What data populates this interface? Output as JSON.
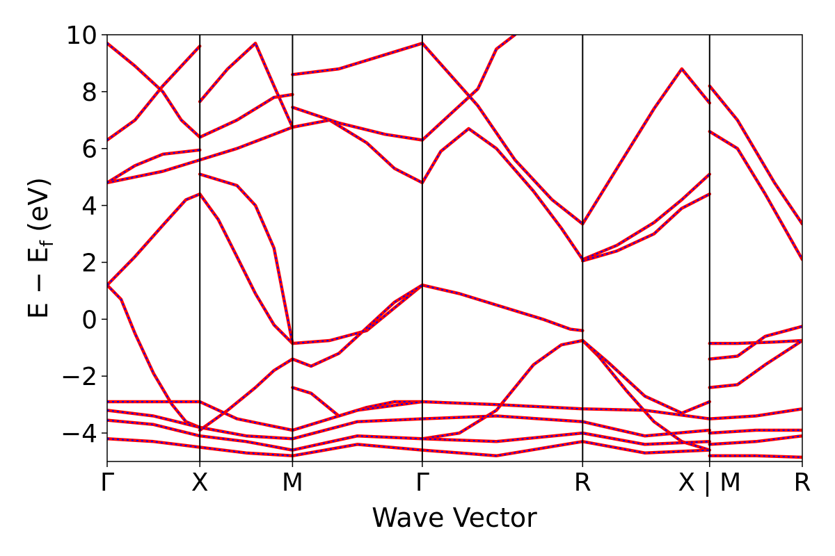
{
  "chart_data": {
    "type": "line",
    "title": "",
    "xlabel": "Wave Vector",
    "ylabel_parts": {
      "main": "E − E",
      "sub": "f",
      "unit": " (eV)"
    },
    "ylim": [
      -5,
      10
    ],
    "yticks": [
      -4,
      -2,
      0,
      2,
      4,
      6,
      8,
      10
    ],
    "ytick_labels": [
      "−4",
      "−2",
      "0",
      "2",
      "4",
      "6",
      "8",
      "10"
    ],
    "xlim": [
      0,
      7.5
    ],
    "kpoints": [
      {
        "label": "Γ",
        "x": 0
      },
      {
        "label": "X",
        "x": 1.0
      },
      {
        "label": "M",
        "x": 2.0
      },
      {
        "label": "Γ",
        "x": 3.4
      },
      {
        "label": "R",
        "x": 5.13
      },
      {
        "label": "X | M",
        "x": 6.5
      },
      {
        "label": "R",
        "x": 7.5
      }
    ],
    "grid": false,
    "legend": "none",
    "colors": {
      "bands_primary": "#ff0000",
      "bands_overlay": "#0000ff",
      "kpoint_lines": "#000000"
    },
    "series": [
      {
        "name": "",
        "segments": [
          [
            [
              0,
              1.2
            ],
            [
              0.15,
              0.7
            ],
            [
              0.3,
              -0.5
            ],
            [
              0.5,
              -1.9
            ],
            [
              0.7,
              -3.0
            ],
            [
              0.85,
              -3.6
            ],
            [
              1.0,
              -3.8
            ]
          ],
          [
            [
              1.0,
              4.4
            ],
            [
              1.2,
              3.5
            ],
            [
              1.4,
              2.2
            ],
            [
              1.6,
              0.9
            ],
            [
              1.8,
              -0.2
            ],
            [
              2.0,
              -0.85
            ]
          ],
          [
            [
              2.0,
              -0.85
            ],
            [
              2.4,
              -0.75
            ],
            [
              2.8,
              -0.4
            ],
            [
              3.1,
              0.4
            ],
            [
              3.4,
              1.2
            ]
          ],
          [
            [
              3.4,
              1.2
            ],
            [
              3.8,
              0.9
            ],
            [
              4.3,
              0.4
            ],
            [
              4.7,
              0.0
            ],
            [
              5.0,
              -0.35
            ],
            [
              5.13,
              -0.4
            ]
          ],
          [
            [
              5.13,
              -0.75
            ],
            [
              5.3,
              -1.3
            ],
            [
              5.6,
              -2.5
            ],
            [
              5.9,
              -3.6
            ],
            [
              6.2,
              -4.3
            ],
            [
              6.5,
              -4.6
            ]
          ],
          [
            [
              6.5,
              -0.85
            ],
            [
              6.8,
              -0.85
            ],
            [
              7.2,
              -0.8
            ],
            [
              7.5,
              -0.75
            ]
          ],
          [
            [
              6.5,
              -1.4
            ],
            [
              6.8,
              -1.3
            ],
            [
              7.1,
              -0.6
            ],
            [
              7.5,
              -0.25
            ]
          ]
        ]
      },
      {
        "name": "",
        "segments": [
          [
            [
              0,
              1.2
            ],
            [
              0.3,
              2.2
            ],
            [
              0.6,
              3.3
            ],
            [
              0.85,
              4.2
            ],
            [
              1.0,
              4.4
            ]
          ],
          [
            [
              1.0,
              -3.9
            ],
            [
              1.3,
              -3.2
            ],
            [
              1.6,
              -2.4
            ],
            [
              1.8,
              -1.8
            ],
            [
              2.0,
              -1.4
            ],
            [
              2.2,
              -1.65
            ],
            [
              2.5,
              -1.2
            ],
            [
              2.8,
              -0.3
            ],
            [
              3.1,
              0.6
            ],
            [
              3.4,
              1.2
            ]
          ],
          [
            [
              2.0,
              -2.4
            ],
            [
              2.2,
              -2.6
            ],
            [
              2.5,
              -3.4
            ],
            [
              2.8,
              -3.1
            ],
            [
              3.1,
              -2.9
            ],
            [
              3.4,
              -2.9
            ]
          ],
          [
            [
              3.4,
              -4.2
            ],
            [
              3.8,
              -4.0
            ],
            [
              4.2,
              -3.2
            ],
            [
              4.6,
              -1.6
            ],
            [
              4.9,
              -0.9
            ],
            [
              5.13,
              -0.75
            ]
          ],
          [
            [
              5.13,
              -0.75
            ],
            [
              5.4,
              -1.5
            ],
            [
              5.8,
              -2.7
            ],
            [
              6.2,
              -3.3
            ],
            [
              6.5,
              -2.9
            ]
          ],
          [
            [
              6.5,
              -2.4
            ],
            [
              6.8,
              -2.3
            ],
            [
              7.1,
              -1.6
            ],
            [
              7.5,
              -0.75
            ]
          ]
        ]
      },
      {
        "name": "",
        "segments": [
          [
            [
              0,
              4.8
            ],
            [
              0.3,
              5.0
            ],
            [
              0.6,
              5.2
            ],
            [
              1.0,
              5.6
            ]
          ],
          [
            [
              0,
              4.8
            ],
            [
              0.3,
              5.4
            ],
            [
              0.6,
              5.8
            ],
            [
              1.0,
              5.95
            ]
          ],
          [
            [
              1.0,
              5.6
            ],
            [
              1.4,
              6.0
            ],
            [
              1.8,
              6.5
            ],
            [
              2.0,
              6.75
            ]
          ],
          [
            [
              1.0,
              5.1
            ],
            [
              1.4,
              4.7
            ],
            [
              1.6,
              4.0
            ],
            [
              1.8,
              2.5
            ],
            [
              2.0,
              -0.85
            ]
          ],
          [
            [
              2.0,
              6.75
            ],
            [
              2.4,
              7.0
            ],
            [
              2.8,
              6.2
            ],
            [
              3.1,
              5.3
            ],
            [
              3.4,
              4.8
            ]
          ],
          [
            [
              3.4,
              4.8
            ],
            [
              3.6,
              5.9
            ],
            [
              3.9,
              6.7
            ],
            [
              4.2,
              6.0
            ],
            [
              4.6,
              4.5
            ],
            [
              4.9,
              3.2
            ],
            [
              5.13,
              2.1
            ]
          ],
          [
            [
              5.13,
              2.1
            ],
            [
              5.5,
              2.6
            ],
            [
              5.9,
              3.4
            ],
            [
              6.2,
              4.2
            ],
            [
              6.5,
              5.1
            ]
          ],
          [
            [
              5.13,
              2.05
            ],
            [
              5.5,
              2.4
            ],
            [
              5.9,
              3.0
            ],
            [
              6.2,
              3.9
            ],
            [
              6.5,
              4.4
            ]
          ],
          [
            [
              6.5,
              6.6
            ],
            [
              6.8,
              6.0
            ],
            [
              7.1,
              4.4
            ],
            [
              7.5,
              2.1
            ]
          ]
        ]
      },
      {
        "name": "",
        "segments": [
          [
            [
              0,
              6.3
            ],
            [
              0.3,
              7.0
            ],
            [
              0.6,
              8.2
            ],
            [
              0.8,
              8.9
            ],
            [
              1.0,
              9.6
            ]
          ],
          [
            [
              0,
              9.7
            ],
            [
              0.3,
              8.9
            ],
            [
              0.6,
              8.0
            ],
            [
              0.8,
              7.0
            ],
            [
              1.0,
              6.4
            ]
          ],
          [
            [
              1.0,
              6.4
            ],
            [
              1.4,
              7.0
            ],
            [
              1.8,
              7.8
            ],
            [
              2.0,
              7.9
            ]
          ],
          [
            [
              1.0,
              7.65
            ],
            [
              1.3,
              8.8
            ],
            [
              1.6,
              9.7
            ],
            [
              1.8,
              8.2
            ],
            [
              2.0,
              6.75
            ]
          ],
          [
            [
              2.0,
              7.45
            ],
            [
              2.5,
              6.9
            ],
            [
              3.0,
              6.5
            ],
            [
              3.4,
              6.3
            ]
          ],
          [
            [
              2.0,
              8.6
            ],
            [
              2.5,
              8.8
            ],
            [
              3.0,
              9.3
            ],
            [
              3.4,
              9.7
            ]
          ],
          [
            [
              3.4,
              9.7
            ],
            [
              3.7,
              8.6
            ],
            [
              4.0,
              7.5
            ],
            [
              4.4,
              5.6
            ],
            [
              4.8,
              4.2
            ],
            [
              5.13,
              3.35
            ]
          ],
          [
            [
              5.13,
              3.35
            ],
            [
              5.5,
              5.3
            ],
            [
              5.9,
              7.4
            ],
            [
              6.2,
              8.8
            ],
            [
              6.5,
              7.6
            ]
          ],
          [
            [
              3.4,
              6.3
            ],
            [
              3.7,
              7.2
            ],
            [
              4.0,
              8.1
            ],
            [
              4.2,
              9.5
            ],
            [
              4.4,
              10
            ]
          ],
          [
            [
              6.5,
              8.2
            ],
            [
              6.8,
              7.0
            ],
            [
              7.2,
              4.8
            ],
            [
              7.5,
              3.35
            ]
          ]
        ]
      },
      {
        "name": "",
        "segments": [
          [
            [
              0,
              -2.9
            ],
            [
              0.5,
              -2.9
            ],
            [
              1.0,
              -2.9
            ],
            [
              1.4,
              -3.5
            ],
            [
              2.0,
              -3.9
            ],
            [
              2.7,
              -3.2
            ],
            [
              3.4,
              -2.9
            ],
            [
              4.2,
              -3.0
            ],
            [
              5.13,
              -3.15
            ],
            [
              5.8,
              -3.2
            ],
            [
              6.5,
              -3.5
            ]
          ],
          [
            [
              0,
              -3.2
            ],
            [
              0.5,
              -3.4
            ],
            [
              1.0,
              -3.8
            ],
            [
              1.5,
              -4.1
            ],
            [
              2.0,
              -4.2
            ],
            [
              2.7,
              -3.6
            ],
            [
              3.4,
              -3.5
            ],
            [
              4.2,
              -3.4
            ],
            [
              5.13,
              -3.6
            ],
            [
              5.8,
              -4.1
            ],
            [
              6.5,
              -3.9
            ]
          ],
          [
            [
              0,
              -3.55
            ],
            [
              0.5,
              -3.7
            ],
            [
              1.0,
              -4.1
            ],
            [
              1.5,
              -4.3
            ],
            [
              2.0,
              -4.6
            ],
            [
              2.7,
              -4.1
            ],
            [
              3.4,
              -4.2
            ],
            [
              4.2,
              -4.3
            ],
            [
              5.13,
              -4.0
            ],
            [
              5.8,
              -4.4
            ],
            [
              6.5,
              -4.3
            ]
          ],
          [
            [
              0,
              -4.2
            ],
            [
              0.5,
              -4.3
            ],
            [
              1.0,
              -4.5
            ],
            [
              1.5,
              -4.7
            ],
            [
              2.0,
              -4.8
            ],
            [
              2.7,
              -4.4
            ],
            [
              3.4,
              -4.6
            ],
            [
              4.2,
              -4.8
            ],
            [
              5.13,
              -4.3
            ],
            [
              5.8,
              -4.7
            ],
            [
              6.5,
              -4.6
            ]
          ],
          [
            [
              6.5,
              -3.5
            ],
            [
              7.0,
              -3.4
            ],
            [
              7.5,
              -3.15
            ]
          ],
          [
            [
              6.5,
              -4.0
            ],
            [
              7.0,
              -3.9
            ],
            [
              7.5,
              -3.9
            ]
          ],
          [
            [
              6.5,
              -4.4
            ],
            [
              7.0,
              -4.3
            ],
            [
              7.5,
              -4.1
            ]
          ],
          [
            [
              6.5,
              -4.8
            ],
            [
              7.0,
              -4.8
            ],
            [
              7.5,
              -4.85
            ]
          ]
        ]
      }
    ]
  }
}
